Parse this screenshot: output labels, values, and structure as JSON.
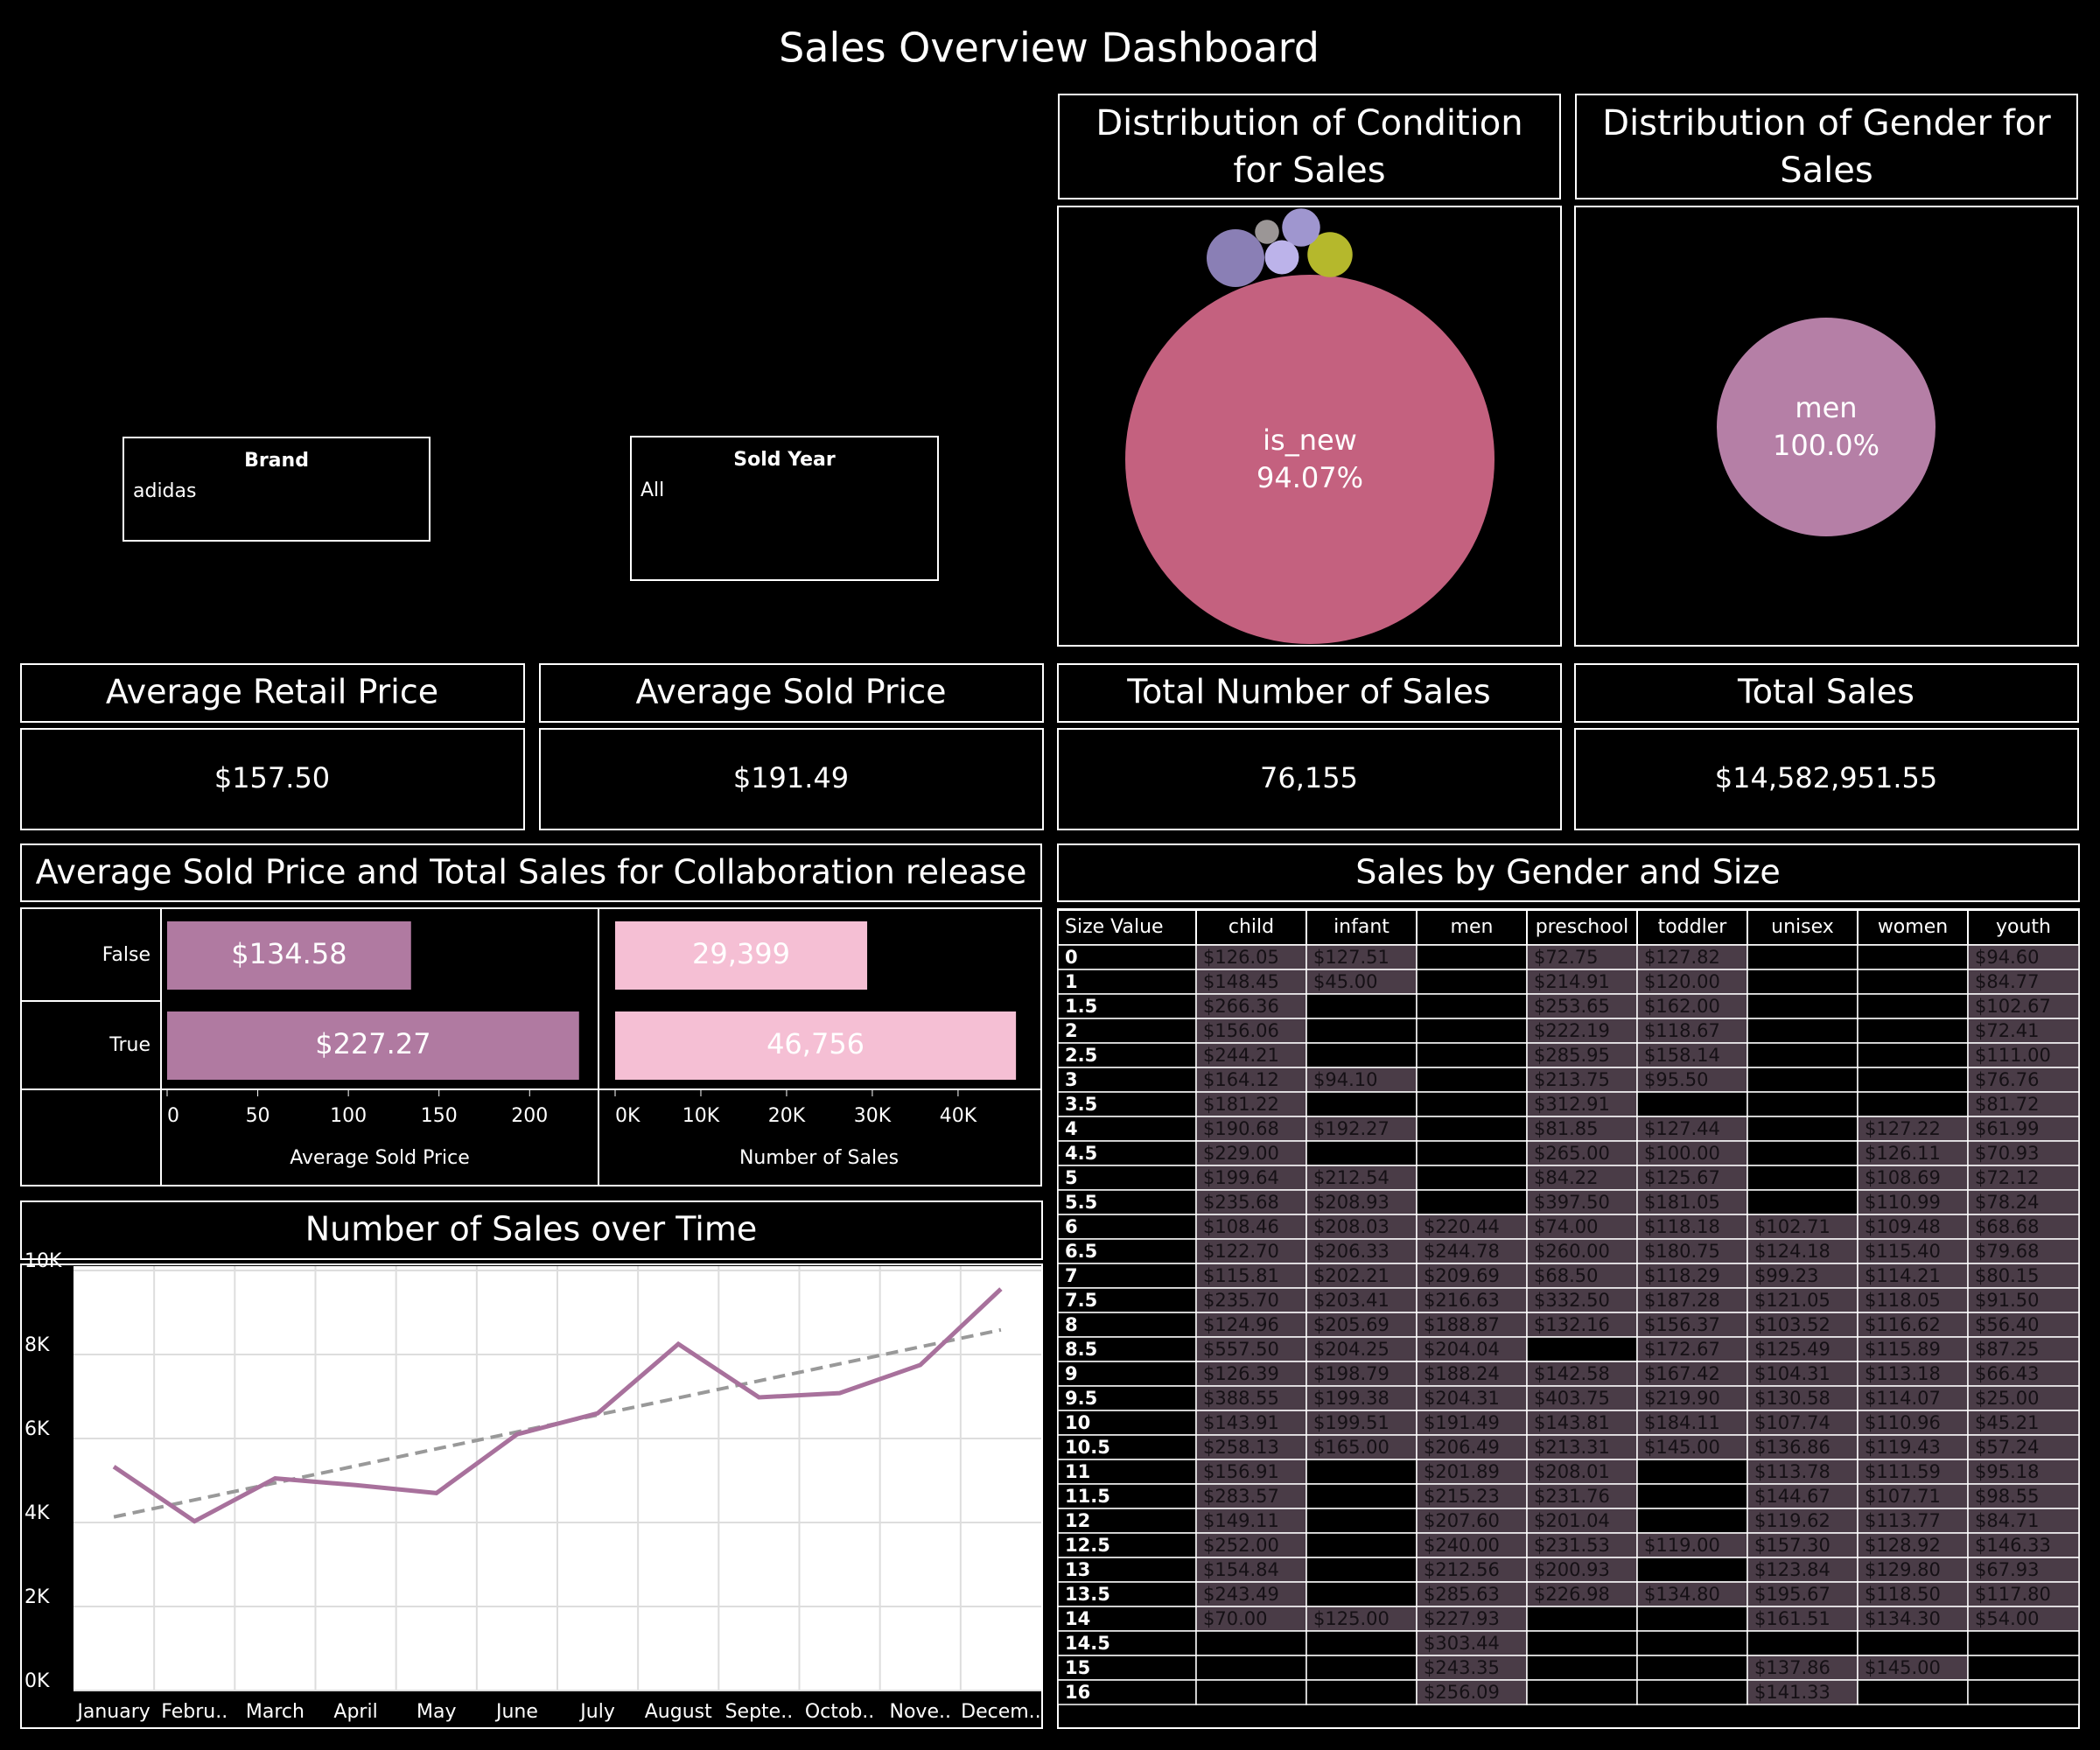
{
  "title": "Sales Overview Dashboard",
  "filters": [
    {
      "label": "Brand",
      "value": "adidas"
    },
    {
      "label": "Sold Year",
      "value": "All"
    }
  ],
  "kpis": [
    {
      "title": "Average Retail Price",
      "value": "$157.50"
    },
    {
      "title": "Average Sold Price",
      "value": "$191.49"
    },
    {
      "title": "Total Number of Sales",
      "value": "76,155"
    },
    {
      "title": "Total Sales",
      "value": "$14,582,951.55"
    }
  ],
  "chart_data": [
    {
      "type": "bubble",
      "title": "Distribution of Condition for Sales",
      "categories": [
        "is_new",
        null,
        null,
        null,
        null,
        null
      ],
      "values": [
        94.07,
        2.3,
        1.4,
        1.0,
        0.8,
        0.4
      ],
      "value_labels": [
        "94.07%",
        null,
        null,
        null,
        null,
        null
      ],
      "colors": [
        "#c4617f",
        "#8a7fb5",
        "#b5b82c",
        "#9f96cf",
        "#bcb3ea",
        "#9b9696"
      ]
    },
    {
      "type": "bubble",
      "title": "Distribution of Gender for Sales",
      "categories": [
        "men"
      ],
      "values": [
        100
      ],
      "value_labels": [
        "100.0%"
      ],
      "colors": [
        "#b57fa6"
      ]
    },
    {
      "type": "bar-panels",
      "title": "Average Sold Price and Total Sales for Collaboration release",
      "categories": [
        "False",
        "True"
      ],
      "panels": [
        {
          "xlabel": "Average Sold Price",
          "values": [
            134.58,
            227.27
          ],
          "value_labels": [
            "$134.58",
            "$227.27"
          ],
          "color": "#b07aa1",
          "xlim": [
            0,
            238
          ],
          "xticks": [
            0,
            50,
            100,
            150,
            200
          ]
        },
        {
          "xlabel": "Number of Sales",
          "values": [
            29399,
            46756
          ],
          "value_labels": [
            "29,399",
            "46,756"
          ],
          "color": "#f5bfd4",
          "xlim": [
            0,
            49500
          ],
          "xticks": [
            {
              "value": 0,
              "label": "0K"
            },
            {
              "value": 10000,
              "label": "10K"
            },
            {
              "value": 20000,
              "label": "20K"
            },
            {
              "value": 30000,
              "label": "30K"
            },
            {
              "value": 40000,
              "label": "40K"
            }
          ]
        }
      ]
    },
    {
      "type": "line",
      "title": "Number of Sales over Time",
      "categories": [
        "January",
        "Febru..",
        "March",
        "April",
        "May",
        "June",
        "July",
        "August",
        "Septe..",
        "Octob..",
        "Nove..",
        "Decem.."
      ],
      "values": [
        5330,
        4030,
        5050,
        4890,
        4700,
        6100,
        6600,
        8250,
        6980,
        7080,
        7750,
        9560
      ],
      "color": "#a8719c",
      "trendline": true,
      "grid": true,
      "ylim": [
        0,
        10000
      ],
      "yticks": [
        {
          "value": 0,
          "label": "0K"
        },
        {
          "value": 2000,
          "label": "2K"
        },
        {
          "value": 4000,
          "label": "4K"
        },
        {
          "value": 6000,
          "label": "6K"
        },
        {
          "value": 8000,
          "label": "8K"
        },
        {
          "value": 10000,
          "label": "10K"
        }
      ]
    }
  ],
  "table": {
    "title": "Sales by Gender and Size",
    "columns": [
      "Size Value",
      "child",
      "infant",
      "men",
      "preschool",
      "toddler",
      "unisex",
      "women",
      "youth"
    ],
    "rows": [
      [
        "0",
        "$126.05",
        "$127.51",
        null,
        "$72.75",
        "$127.82",
        null,
        null,
        "$94.60"
      ],
      [
        "1",
        "$148.45",
        "$45.00",
        null,
        "$214.91",
        "$120.00",
        null,
        null,
        "$84.77"
      ],
      [
        "1.5",
        "$266.36",
        null,
        null,
        "$253.65",
        "$162.00",
        null,
        null,
        "$102.67"
      ],
      [
        "2",
        "$156.06",
        null,
        null,
        "$222.19",
        "$118.67",
        null,
        null,
        "$72.41"
      ],
      [
        "2.5",
        "$244.21",
        null,
        null,
        "$285.95",
        "$158.14",
        null,
        null,
        "$111.00"
      ],
      [
        "3",
        "$164.12",
        "$94.10",
        null,
        "$213.75",
        "$95.50",
        null,
        null,
        "$76.76"
      ],
      [
        "3.5",
        "$181.22",
        null,
        null,
        "$312.91",
        null,
        null,
        null,
        "$81.72"
      ],
      [
        "4",
        "$190.68",
        "$192.27",
        null,
        "$81.85",
        "$127.44",
        null,
        "$127.22",
        "$61.99"
      ],
      [
        "4.5",
        "$229.00",
        null,
        null,
        "$265.00",
        "$100.00",
        null,
        "$126.11",
        "$70.93"
      ],
      [
        "5",
        "$199.64",
        "$212.54",
        null,
        "$84.22",
        "$125.67",
        null,
        "$108.69",
        "$72.12"
      ],
      [
        "5.5",
        "$235.68",
        "$208.93",
        null,
        "$397.50",
        "$181.05",
        null,
        "$110.99",
        "$78.24"
      ],
      [
        "6",
        "$108.46",
        "$208.03",
        "$220.44",
        "$74.00",
        "$118.18",
        "$102.71",
        "$109.48",
        "$68.68"
      ],
      [
        "6.5",
        "$122.70",
        "$206.33",
        "$244.78",
        "$260.00",
        "$180.75",
        "$124.18",
        "$115.40",
        "$79.68"
      ],
      [
        "7",
        "$115.81",
        "$202.21",
        "$209.69",
        "$68.50",
        "$118.29",
        "$99.23",
        "$114.21",
        "$80.15"
      ],
      [
        "7.5",
        "$235.70",
        "$203.41",
        "$216.63",
        "$332.50",
        "$187.28",
        "$121.05",
        "$118.05",
        "$91.50"
      ],
      [
        "8",
        "$124.96",
        "$205.69",
        "$188.87",
        "$132.16",
        "$156.37",
        "$103.52",
        "$116.62",
        "$56.40"
      ],
      [
        "8.5",
        "$557.50",
        "$204.25",
        "$204.04",
        null,
        "$172.67",
        "$125.49",
        "$115.89",
        "$87.25"
      ],
      [
        "9",
        "$126.39",
        "$198.79",
        "$188.24",
        "$142.58",
        "$167.42",
        "$104.31",
        "$113.18",
        "$66.43"
      ],
      [
        "9.5",
        "$388.55",
        "$199.38",
        "$204.31",
        "$403.75",
        "$219.90",
        "$130.58",
        "$114.07",
        "$25.00"
      ],
      [
        "10",
        "$143.91",
        "$199.51",
        "$191.49",
        "$143.81",
        "$184.11",
        "$107.74",
        "$110.96",
        "$45.21"
      ],
      [
        "10.5",
        "$258.13",
        "$165.00",
        "$206.49",
        "$213.31",
        "$145.00",
        "$136.86",
        "$119.43",
        "$57.24"
      ],
      [
        "11",
        "$156.91",
        null,
        "$201.89",
        "$208.01",
        null,
        "$113.78",
        "$111.59",
        "$95.18"
      ],
      [
        "11.5",
        "$283.57",
        null,
        "$215.23",
        "$231.76",
        null,
        "$144.67",
        "$107.71",
        "$98.55"
      ],
      [
        "12",
        "$149.11",
        null,
        "$207.60",
        "$201.04",
        null,
        "$119.62",
        "$113.77",
        "$84.71"
      ],
      [
        "12.5",
        "$252.00",
        null,
        "$240.00",
        "$231.53",
        "$119.00",
        "$157.30",
        "$128.92",
        "$146.33"
      ],
      [
        "13",
        "$154.84",
        null,
        "$212.56",
        "$200.93",
        null,
        "$123.84",
        "$129.80",
        "$67.93"
      ],
      [
        "13.5",
        "$243.49",
        null,
        "$285.63",
        "$226.98",
        "$134.80",
        "$195.67",
        "$118.50",
        "$117.80"
      ],
      [
        "14",
        "$70.00",
        "$125.00",
        "$227.93",
        null,
        null,
        "$161.51",
        "$134.30",
        "$54.00"
      ],
      [
        "14.5",
        null,
        null,
        "$303.44",
        null,
        null,
        null,
        null,
        null
      ],
      [
        "15",
        null,
        null,
        "$243.35",
        null,
        null,
        "$137.86",
        "$145.00",
        null
      ],
      [
        "16",
        null,
        null,
        "$256.09",
        null,
        null,
        "$141.33",
        null,
        null
      ]
    ]
  }
}
